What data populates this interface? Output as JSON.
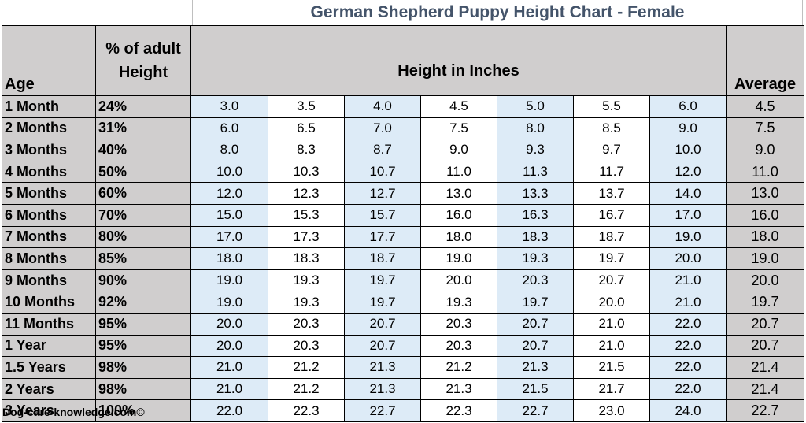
{
  "title": "German Shepherd Puppy Height Chart - Female",
  "headers": {
    "age": "Age",
    "pct_line1": "% of adult",
    "pct_line2": "Height",
    "height": "Height in Inches",
    "average": "Average"
  },
  "rows": [
    {
      "age": "1 Month",
      "pct": "24%",
      "values": [
        "3.0",
        "3.5",
        "4.0",
        "4.5",
        "5.0",
        "5.5",
        "6.0"
      ],
      "avg": "4.5"
    },
    {
      "age": "2 Months",
      "pct": "31%",
      "values": [
        "6.0",
        "6.5",
        "7.0",
        "7.5",
        "8.0",
        "8.5",
        "9.0"
      ],
      "avg": "7.5"
    },
    {
      "age": "3 Months",
      "pct": "40%",
      "values": [
        "8.0",
        "8.3",
        "8.7",
        "9.0",
        "9.3",
        "9.7",
        "10.0"
      ],
      "avg": "9.0"
    },
    {
      "age": "4 Months",
      "pct": "50%",
      "values": [
        "10.0",
        "10.3",
        "10.7",
        "11.0",
        "11.3",
        "11.7",
        "12.0"
      ],
      "avg": "11.0"
    },
    {
      "age": "5 Months",
      "pct": "60%",
      "values": [
        "12.0",
        "12.3",
        "12.7",
        "13.0",
        "13.3",
        "13.7",
        "14.0"
      ],
      "avg": "13.0"
    },
    {
      "age": "6 Months",
      "pct": "70%",
      "values": [
        "15.0",
        "15.3",
        "15.7",
        "16.0",
        "16.3",
        "16.7",
        "17.0"
      ],
      "avg": "16.0"
    },
    {
      "age": "7 Months",
      "pct": "80%",
      "values": [
        "17.0",
        "17.3",
        "17.7",
        "18.0",
        "18.3",
        "18.7",
        "19.0"
      ],
      "avg": "18.0"
    },
    {
      "age": "8 Months",
      "pct": "85%",
      "values": [
        "18.0",
        "18.3",
        "18.7",
        "19.0",
        "19.3",
        "19.7",
        "20.0"
      ],
      "avg": "19.0"
    },
    {
      "age": "9 Months",
      "pct": "90%",
      "values": [
        "19.0",
        "19.3",
        "19.7",
        "20.0",
        "20.3",
        "20.7",
        "21.0"
      ],
      "avg": "20.0"
    },
    {
      "age": "10 Months",
      "pct": "92%",
      "values": [
        "19.0",
        "19.3",
        "19.7",
        "19.3",
        "19.7",
        "20.0",
        "21.0"
      ],
      "avg": "19.7"
    },
    {
      "age": "11 Months",
      "pct": "95%",
      "values": [
        "20.0",
        "20.3",
        "20.7",
        "20.3",
        "20.7",
        "21.0",
        "22.0"
      ],
      "avg": "20.7"
    },
    {
      "age": "1 Year",
      "pct": "95%",
      "values": [
        "20.0",
        "20.3",
        "20.7",
        "20.3",
        "20.7",
        "21.0",
        "22.0"
      ],
      "avg": "20.7"
    },
    {
      "age": "1.5 Years",
      "pct": "98%",
      "values": [
        "21.0",
        "21.2",
        "21.3",
        "21.2",
        "21.3",
        "21.5",
        "22.0"
      ],
      "avg": "21.4"
    },
    {
      "age": "2 Years",
      "pct": "98%",
      "values": [
        "21.0",
        "21.2",
        "21.3",
        "21.3",
        "21.5",
        "21.7",
        "22.0"
      ],
      "avg": "21.4"
    },
    {
      "age": "3 Years",
      "pct": "100%",
      "values": [
        "22.0",
        "22.3",
        "22.7",
        "22.3",
        "22.7",
        "23.0",
        "24.0"
      ],
      "avg": "22.7"
    }
  ],
  "footer": "Dog-care-knowledge.com©",
  "colors": {
    "header_gray": "#d0cece",
    "light_blue": "#ddebf7",
    "title_blue": "#44546a"
  }
}
